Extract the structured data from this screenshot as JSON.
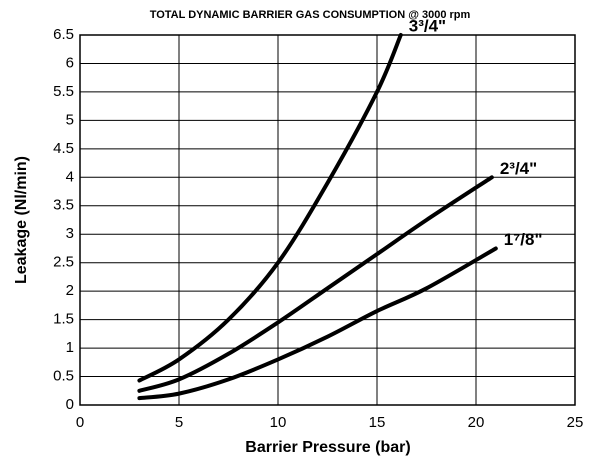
{
  "chart_data": {
    "type": "line",
    "title": "TOTAL DYNAMIC BARRIER GAS CONSUMPTION @ 3000 rpm",
    "x_label": "Barrier Pressure (bar)",
    "y_label": "Leakage (Nl/min)",
    "series": [
      {
        "name": "3³/4\"",
        "color": "#000000",
        "x": [
          3,
          5,
          7.5,
          10,
          12.5,
          15,
          16.2
        ],
        "values": [
          0.43,
          0.8,
          1.5,
          2.5,
          3.9,
          5.5,
          6.5
        ]
      },
      {
        "name": "2³/4\"",
        "color": "#000000",
        "x": [
          3,
          5,
          7.5,
          10,
          12.5,
          15,
          17.5,
          20.8
        ],
        "values": [
          0.25,
          0.45,
          0.9,
          1.45,
          2.05,
          2.65,
          3.25,
          4.0
        ]
      },
      {
        "name": "1⁷/8\"",
        "color": "#000000",
        "x": [
          3,
          5,
          7.5,
          10,
          12.5,
          15,
          17.5,
          21
        ],
        "values": [
          0.12,
          0.2,
          0.45,
          0.8,
          1.2,
          1.65,
          2.05,
          2.75
        ]
      }
    ],
    "xlim": [
      0,
      25
    ],
    "xticks": [
      0,
      5,
      10,
      15,
      20,
      25
    ],
    "ylim": [
      0,
      6.5
    ],
    "yticks": [
      0,
      0.5,
      1,
      1.5,
      2,
      2.5,
      3,
      3.5,
      4,
      4.5,
      5,
      5.5,
      6,
      6.5
    ],
    "grid": true
  }
}
